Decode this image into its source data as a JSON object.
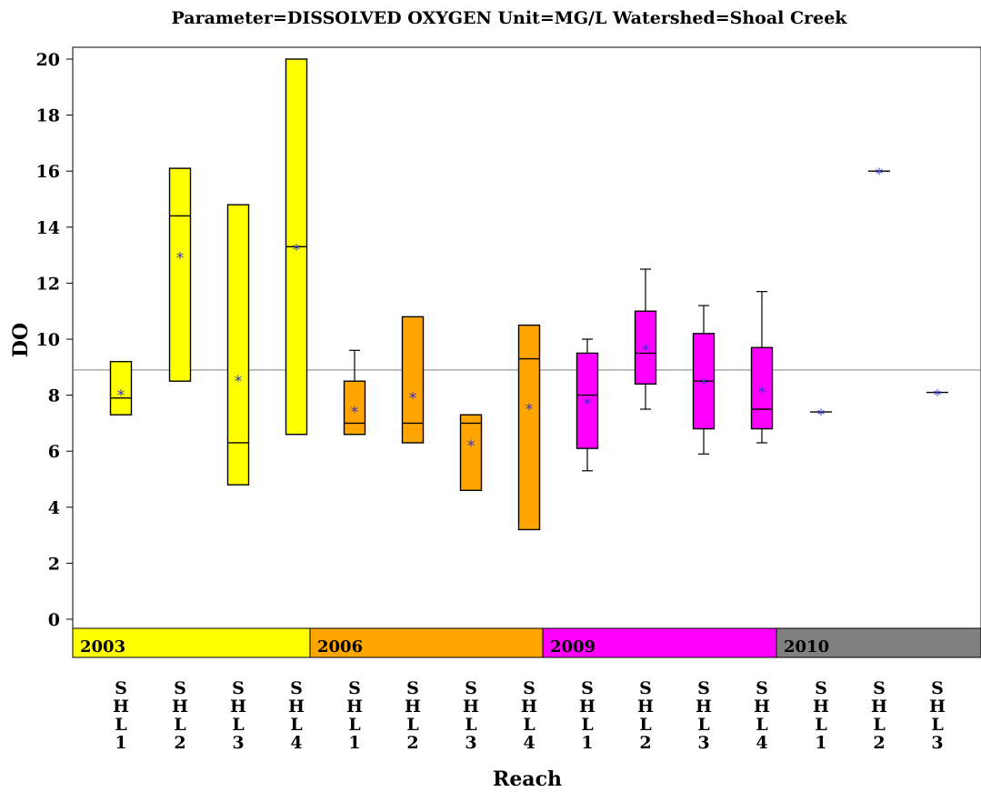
{
  "chart_data": {
    "type": "box",
    "title": "Parameter=DISSOLVED  OXYGEN  Unit=MG/L  Watershed=Shoal  Creek",
    "xlabel": "Reach",
    "ylabel": "DO",
    "ylim": [
      -1.4,
      20.4
    ],
    "yticks": [
      0,
      2,
      4,
      6,
      8,
      10,
      12,
      14,
      16,
      18,
      20
    ],
    "reference_line": 8.9,
    "groups": [
      {
        "label": "2003",
        "color": "#ffff00",
        "start": 0,
        "end": 4
      },
      {
        "label": "2006",
        "color": "#ffa500",
        "start": 4,
        "end": 8
      },
      {
        "label": "2009",
        "color": "#ff00ff",
        "start": 8,
        "end": 12
      },
      {
        "label": "2010",
        "color": "#808080",
        "start": 12,
        "end": 15
      }
    ],
    "categories": [
      "SHL1",
      "SHL2",
      "SHL3",
      "SHL4",
      "SHL1",
      "SHL2",
      "SHL3",
      "SHL4",
      "SHL1",
      "SHL2",
      "SHL3",
      "SHL4",
      "SHL1",
      "SHL2",
      "SHL3"
    ],
    "boxes": [
      {
        "category": "SHL1",
        "group": "2003",
        "min": 7.3,
        "q1": 7.3,
        "median": 7.9,
        "q3": 9.2,
        "max": 9.2,
        "mean": 8.1
      },
      {
        "category": "SHL2",
        "group": "2003",
        "min": 8.5,
        "q1": 8.5,
        "median": 14.4,
        "q3": 16.1,
        "max": 16.1,
        "mean": 13.0
      },
      {
        "category": "SHL3",
        "group": "2003",
        "min": 4.8,
        "q1": 4.8,
        "median": 6.3,
        "q3": 14.8,
        "max": 14.8,
        "mean": 8.6
      },
      {
        "category": "SHL4",
        "group": "2003",
        "min": 6.6,
        "q1": 6.6,
        "median": 13.3,
        "q3": 20.0,
        "max": 20.0,
        "mean": 13.3
      },
      {
        "category": "SHL1",
        "group": "2006",
        "min": 6.6,
        "q1": 6.6,
        "median": 7.0,
        "q3": 8.5,
        "max": 9.6,
        "mean": 7.5
      },
      {
        "category": "SHL2",
        "group": "2006",
        "min": 6.3,
        "q1": 6.3,
        "median": 7.0,
        "q3": 10.8,
        "max": 10.8,
        "mean": 8.0
      },
      {
        "category": "SHL3",
        "group": "2006",
        "min": 4.6,
        "q1": 4.6,
        "median": 7.0,
        "q3": 7.3,
        "max": 7.3,
        "mean": 6.3
      },
      {
        "category": "SHL4",
        "group": "2006",
        "min": 3.2,
        "q1": 3.2,
        "median": 9.3,
        "q3": 10.5,
        "max": 10.5,
        "mean": 7.6
      },
      {
        "category": "SHL1",
        "group": "2009",
        "min": 5.3,
        "q1": 6.1,
        "median": 8.0,
        "q3": 9.5,
        "max": 10.0,
        "mean": 7.8
      },
      {
        "category": "SHL2",
        "group": "2009",
        "min": 7.5,
        "q1": 8.4,
        "median": 9.5,
        "q3": 11.0,
        "max": 12.5,
        "mean": 9.7
      },
      {
        "category": "SHL3",
        "group": "2009",
        "min": 5.9,
        "q1": 6.8,
        "median": 8.5,
        "q3": 10.2,
        "max": 11.2,
        "mean": 8.5
      },
      {
        "category": "SHL4",
        "group": "2009",
        "min": 6.3,
        "q1": 6.8,
        "median": 7.5,
        "q3": 9.7,
        "max": 11.7,
        "mean": 8.2
      },
      {
        "category": "SHL1",
        "group": "2010",
        "min": 7.4,
        "q1": 7.4,
        "median": 7.4,
        "q3": 7.4,
        "max": 7.4,
        "mean": 7.4
      },
      {
        "category": "SHL2",
        "group": "2010",
        "min": 16.0,
        "q1": 16.0,
        "median": 16.0,
        "q3": 16.0,
        "max": 16.0,
        "mean": 16.0
      },
      {
        "category": "SHL3",
        "group": "2010",
        "min": 8.1,
        "q1": 8.1,
        "median": 8.1,
        "q3": 8.1,
        "max": 8.1,
        "mean": 8.1
      }
    ],
    "mean_marker_color": "#3333cc",
    "reference_line_color": "#999999"
  }
}
